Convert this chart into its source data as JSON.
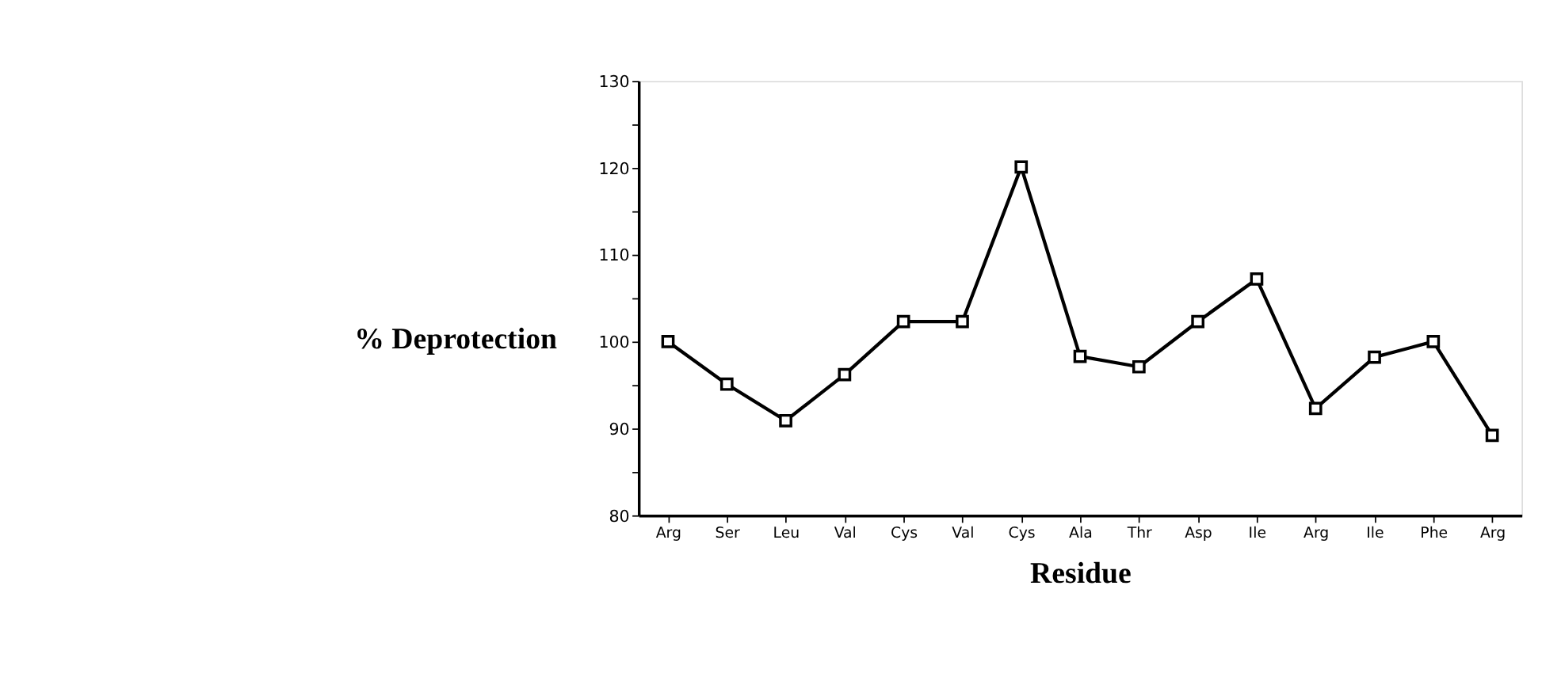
{
  "chart_data": {
    "type": "line",
    "xlabel": "Residue",
    "ylabel": "% Deprotection",
    "categories": [
      "Arg",
      "Ser",
      "Leu",
      "Val",
      "Cys",
      "Val",
      "Cys",
      "Ala",
      "Thr",
      "Asp",
      "Ile",
      "Arg",
      "Ile",
      "Phe",
      "Arg"
    ],
    "series": [
      {
        "color": "#000000",
        "values": [
          100,
          95.1,
          90.9,
          96.2,
          102.3,
          102.3,
          120.1,
          98.3,
          97.1,
          102.3,
          107.2,
          92.3,
          98.2,
          100,
          89.2
        ]
      }
    ],
    "ylim": [
      80,
      130
    ],
    "yticks": [
      80,
      {
        "value": 85,
        "label": null
      },
      90,
      {
        "value": 95,
        "label": null
      },
      100,
      {
        "value": 105,
        "label": null
      },
      110,
      {
        "value": 115,
        "label": null
      },
      120,
      {
        "value": 125,
        "label": null
      },
      130
    ],
    "marker": "square",
    "line_style": "solid",
    "grid": false
  }
}
